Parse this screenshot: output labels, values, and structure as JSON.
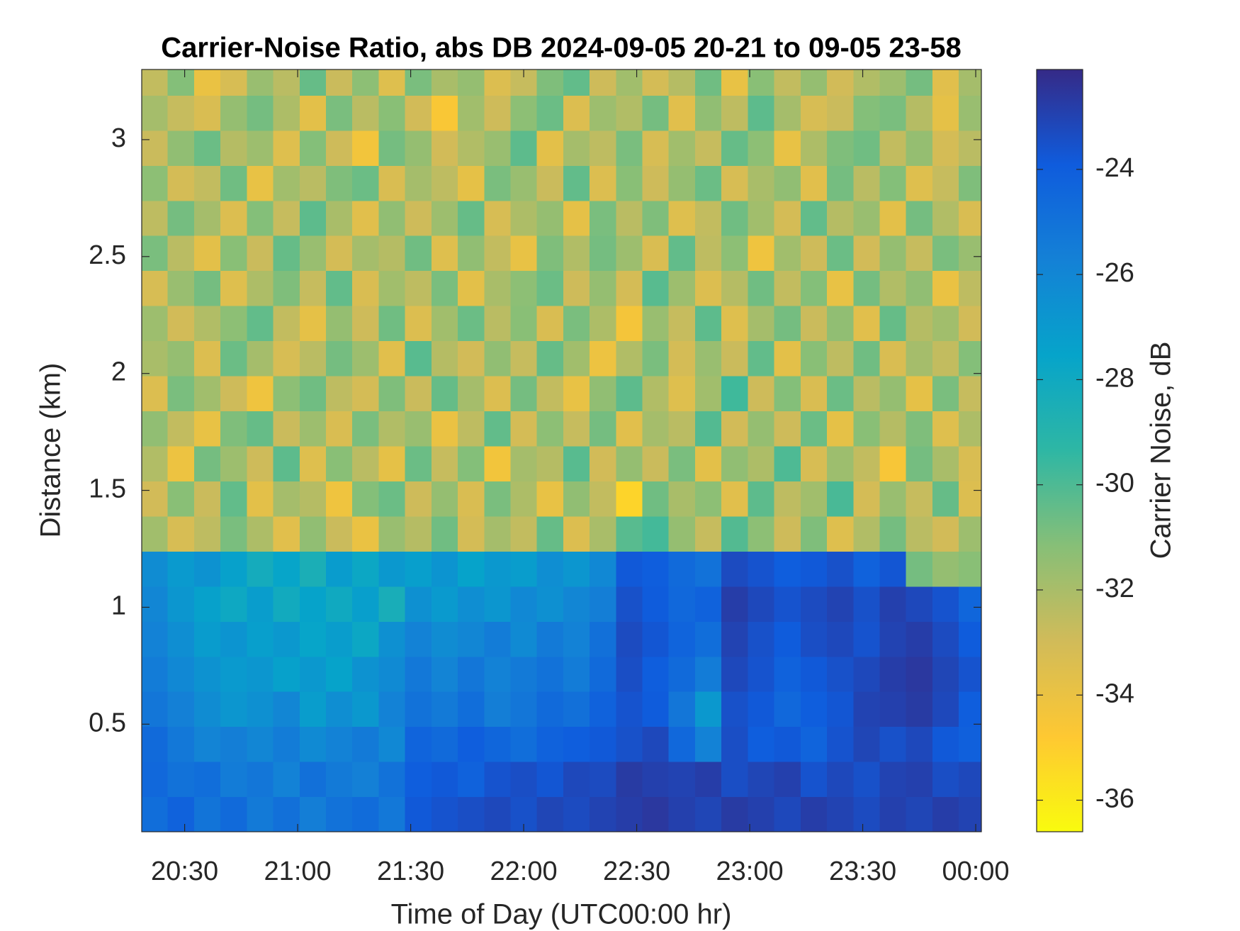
{
  "chart_data": {
    "type": "heatmap",
    "title": "Carrier-Noise Ratio, abs DB 2024-09-05 20-21 to 09-05 23-58",
    "x_label": "Time of Day (UTC00:00 hr)",
    "y_label": "Distance (km)",
    "colorbar_label": "Carrier Noise, dB",
    "colormap": "parula",
    "colormap_reversed": true,
    "xlim": [
      20.31,
      24.025
    ],
    "ylim": [
      0.04,
      3.3
    ],
    "clim": [
      -36.6,
      -22.1
    ],
    "xticks": [
      {
        "value": 20.5,
        "label": "20:30"
      },
      {
        "value": 21,
        "label": "21:00"
      },
      {
        "value": 21.5,
        "label": "21:30"
      },
      {
        "value": 22,
        "label": "22:00"
      },
      {
        "value": 22.5,
        "label": "22:30"
      },
      {
        "value": 23,
        "label": "23:00"
      },
      {
        "value": 23.5,
        "label": "23:30"
      },
      {
        "value": 24,
        "label": "00:00"
      }
    ],
    "yticks": [
      0.5,
      1,
      1.5,
      2,
      2.5,
      3
    ],
    "cticks": [
      -24,
      -26,
      -28,
      -30,
      -32,
      -34,
      -36
    ],
    "x": [
      20.367,
      20.483,
      20.6,
      20.717,
      20.833,
      20.95,
      21.067,
      21.183,
      21.3,
      21.417,
      21.533,
      21.65,
      21.767,
      21.883,
      22.0,
      22.117,
      22.233,
      22.35,
      22.467,
      22.583,
      22.7,
      22.817,
      22.933,
      23.05,
      23.167,
      23.283,
      23.4,
      23.517,
      23.633,
      23.75,
      23.867,
      23.983
    ],
    "y": [
      0.115,
      0.265,
      0.415,
      0.565,
      0.715,
      0.865,
      1.015,
      1.165,
      1.315,
      1.465,
      1.615,
      1.765,
      1.915,
      2.065,
      2.215,
      2.365,
      2.515,
      2.665,
      2.815,
      2.965,
      3.115,
      3.265
    ],
    "z": [
      [
        -24.8,
        -24.2,
        -25.1,
        -24.6,
        -25.4,
        -24.9,
        -25.6,
        -25.0,
        -24.7,
        -25.3,
        -23.8,
        -23.6,
        -23.4,
        -23.2,
        -23.5,
        -23.1,
        -23.3,
        -23.0,
        -22.8,
        -22.6,
        -22.9,
        -23.1,
        -22.7,
        -22.9,
        -23.2,
        -22.8,
        -23.0,
        -23.3,
        -22.9,
        -23.1,
        -22.8,
        -23.0
      ],
      [
        -24.5,
        -25.0,
        -24.8,
        -25.5,
        -25.2,
        -25.8,
        -24.9,
        -25.4,
        -25.7,
        -25.0,
        -24.0,
        -23.8,
        -24.2,
        -23.6,
        -23.4,
        -23.7,
        -23.2,
        -23.3,
        -22.7,
        -22.9,
        -23.0,
        -22.8,
        -23.4,
        -23.1,
        -22.9,
        -23.6,
        -23.2,
        -23.5,
        -23.0,
        -22.9,
        -23.4,
        -23.2
      ],
      [
        -24.6,
        -25.3,
        -25.9,
        -25.6,
        -26.0,
        -25.5,
        -26.2,
        -25.8,
        -25.4,
        -26.1,
        -24.3,
        -24.6,
        -24.0,
        -24.4,
        -24.8,
        -24.2,
        -24.0,
        -23.8,
        -23.5,
        -23.2,
        -24.5,
        -25.8,
        -23.4,
        -24.0,
        -23.8,
        -24.3,
        -23.6,
        -23.1,
        -23.5,
        -23.2,
        -23.8,
        -24.1
      ],
      [
        -25.2,
        -25.7,
        -26.3,
        -26.8,
        -26.5,
        -26.0,
        -27.2,
        -26.4,
        -26.9,
        -25.8,
        -25.0,
        -25.4,
        -24.8,
        -25.6,
        -25.2,
        -24.6,
        -24.9,
        -24.2,
        -23.6,
        -23.9,
        -25.2,
        -26.9,
        -23.5,
        -23.8,
        -24.5,
        -24.0,
        -23.7,
        -23.0,
        -22.9,
        -22.7,
        -23.2,
        -24.0
      ],
      [
        -25.5,
        -26.1,
        -26.6,
        -27.0,
        -26.8,
        -27.4,
        -26.9,
        -27.5,
        -26.6,
        -26.2,
        -25.3,
        -25.9,
        -25.2,
        -25.8,
        -25.4,
        -25.0,
        -25.5,
        -24.6,
        -23.4,
        -24.0,
        -24.6,
        -25.5,
        -23.2,
        -23.6,
        -24.2,
        -23.8,
        -23.5,
        -23.2,
        -22.8,
        -22.6,
        -23.1,
        -23.6
      ],
      [
        -25.8,
        -26.4,
        -27.1,
        -26.7,
        -27.3,
        -26.9,
        -27.6,
        -27.2,
        -27.8,
        -26.5,
        -25.8,
        -26.3,
        -26.0,
        -25.5,
        -26.2,
        -25.4,
        -25.8,
        -24.9,
        -23.3,
        -23.7,
        -24.3,
        -24.8,
        -23.0,
        -23.5,
        -23.9,
        -23.4,
        -23.2,
        -23.6,
        -23.0,
        -22.8,
        -23.3,
        -23.9
      ],
      [
        -26.0,
        -26.8,
        -27.4,
        -27.9,
        -27.2,
        -28.1,
        -27.5,
        -28.0,
        -27.3,
        -28.4,
        -26.5,
        -27.0,
        -26.4,
        -26.8,
        -26.1,
        -26.5,
        -26.0,
        -25.6,
        -23.5,
        -23.9,
        -24.5,
        -24.2,
        -22.8,
        -23.2,
        -23.6,
        -23.3,
        -23.0,
        -23.5,
        -22.9,
        -23.2,
        -23.6,
        -24.4
      ],
      [
        -26.3,
        -27.0,
        -26.6,
        -27.4,
        -28.2,
        -27.6,
        -28.5,
        -27.1,
        -27.8,
        -26.9,
        -27.3,
        -26.7,
        -27.5,
        -26.9,
        -27.2,
        -26.4,
        -26.8,
        -26.1,
        -23.8,
        -24.0,
        -24.6,
        -25.0,
        -23.3,
        -23.6,
        -24.0,
        -23.8,
        -23.5,
        -24.2,
        -23.7,
        -30.8,
        -31.5,
        -31.2
      ],
      [
        -31.8,
        -33.2,
        -32.5,
        -30.9,
        -32.1,
        -33.6,
        -31.4,
        -32.8,
        -34.0,
        -31.6,
        -32.3,
        -30.7,
        -33.1,
        -31.9,
        -32.6,
        -30.5,
        -33.4,
        -32.0,
        -30.2,
        -29.8,
        -31.5,
        -32.7,
        -30.1,
        -31.3,
        -32.9,
        -31.0,
        -33.5,
        -32.2,
        -30.8,
        -32.4,
        -33.0,
        -31.7
      ],
      [
        -33.0,
        -31.2,
        -32.8,
        -30.4,
        -33.7,
        -31.9,
        -32.3,
        -34.2,
        -31.1,
        -30.6,
        -32.9,
        -31.5,
        -33.3,
        -30.9,
        -32.1,
        -33.9,
        -31.4,
        -32.6,
        -35.2,
        -30.7,
        -32.0,
        -31.3,
        -33.6,
        -30.3,
        -32.5,
        -31.8,
        -29.9,
        -33.1,
        -31.6,
        -32.7,
        -30.5,
        -33.4
      ],
      [
        -32.2,
        -34.1,
        -30.8,
        -31.7,
        -32.9,
        -30.3,
        -33.5,
        -31.2,
        -32.4,
        -33.8,
        -30.6,
        -32.7,
        -31.1,
        -34.3,
        -31.9,
        -32.3,
        -30.2,
        -33.0,
        -31.5,
        -32.8,
        -30.9,
        -33.7,
        -31.4,
        -32.1,
        -30.0,
        -33.2,
        -31.7,
        -32.6,
        -34.5,
        -30.8,
        -32.0,
        -33.3
      ],
      [
        -31.4,
        -32.6,
        -33.9,
        -31.0,
        -30.5,
        -32.8,
        -31.7,
        -33.3,
        -30.9,
        -32.2,
        -31.6,
        -34.0,
        -32.5,
        -30.4,
        -33.1,
        -31.3,
        -32.7,
        -30.8,
        -33.6,
        -31.9,
        -32.4,
        -30.1,
        -33.0,
        -31.5,
        -32.9,
        -30.6,
        -33.8,
        -31.2,
        -32.3,
        -31.0,
        -33.5,
        -32.1
      ],
      [
        -33.4,
        -30.9,
        -31.8,
        -32.9,
        -34.2,
        -31.3,
        -30.7,
        -32.5,
        -33.1,
        -31.0,
        -32.8,
        -30.5,
        -31.9,
        -33.4,
        -30.8,
        -32.6,
        -33.9,
        -31.4,
        -30.3,
        -32.2,
        -33.5,
        -31.8,
        -29.7,
        -32.9,
        -31.1,
        -33.3,
        -30.6,
        -32.4,
        -31.5,
        -33.8,
        -30.9,
        -32.7
      ],
      [
        -32.0,
        -31.5,
        -33.4,
        -30.6,
        -31.9,
        -33.2,
        -32.4,
        -30.8,
        -31.7,
        -33.6,
        -30.2,
        -32.3,
        -33.0,
        -31.4,
        -32.7,
        -30.5,
        -31.8,
        -34.1,
        -32.2,
        -30.9,
        -33.1,
        -31.6,
        -32.8,
        -30.4,
        -33.7,
        -31.2,
        -32.5,
        -30.7,
        -33.3,
        -31.9,
        -32.6,
        -31.1
      ],
      [
        -31.7,
        -33.0,
        -32.2,
        -31.3,
        -30.4,
        -32.6,
        -33.8,
        -31.5,
        -32.9,
        -30.7,
        -33.4,
        -31.8,
        -30.6,
        -32.4,
        -31.2,
        -33.3,
        -30.9,
        -32.1,
        -34.4,
        -31.6,
        -32.7,
        -30.3,
        -33.5,
        -31.9,
        -30.8,
        -32.8,
        -31.4,
        -33.6,
        -30.5,
        -32.3,
        -31.8,
        -33.0
      ],
      [
        -33.2,
        -31.6,
        -30.8,
        -33.5,
        -32.1,
        -31.0,
        -32.7,
        -30.4,
        -33.3,
        -31.8,
        -32.5,
        -30.9,
        -33.7,
        -32.0,
        -31.3,
        -30.6,
        -32.9,
        -31.5,
        -33.1,
        -30.2,
        -31.7,
        -33.4,
        -32.3,
        -30.7,
        -32.6,
        -31.1,
        -33.9,
        -30.8,
        -32.2,
        -31.4,
        -34.0,
        -32.5
      ],
      [
        -30.9,
        -32.4,
        -33.7,
        -31.2,
        -32.8,
        -30.5,
        -31.6,
        -33.1,
        -31.9,
        -32.3,
        -30.7,
        -33.5,
        -31.4,
        -32.6,
        -33.9,
        -31.0,
        -32.2,
        -30.8,
        -31.7,
        -33.3,
        -30.4,
        -32.5,
        -31.3,
        -34.2,
        -31.8,
        -32.9,
        -30.6,
        -33.0,
        -31.5,
        -32.7,
        -30.9,
        -31.6
      ],
      [
        -32.5,
        -30.8,
        -31.9,
        -33.4,
        -31.1,
        -32.7,
        -30.3,
        -32.0,
        -33.6,
        -31.4,
        -32.9,
        -31.7,
        -30.5,
        -33.2,
        -32.1,
        -31.5,
        -33.8,
        -30.9,
        -32.4,
        -31.0,
        -33.5,
        -32.6,
        -30.7,
        -31.8,
        -33.1,
        -30.4,
        -32.3,
        -31.6,
        -33.7,
        -30.8,
        -32.2,
        -33.3
      ],
      [
        -31.3,
        -33.1,
        -32.6,
        -30.7,
        -33.9,
        -31.8,
        -32.4,
        -31.0,
        -30.6,
        -33.3,
        -31.9,
        -32.5,
        -33.8,
        -30.9,
        -31.6,
        -32.8,
        -30.4,
        -33.4,
        -31.2,
        -32.9,
        -31.5,
        -30.6,
        -33.2,
        -32.0,
        -31.4,
        -33.6,
        -30.8,
        -32.4,
        -31.1,
        -33.5,
        -32.7,
        -31.0
      ],
      [
        -32.8,
        -31.4,
        -30.6,
        -32.3,
        -31.7,
        -33.5,
        -31.1,
        -32.9,
        -34.3,
        -30.8,
        -31.5,
        -33.0,
        -32.2,
        -31.6,
        -30.3,
        -33.7,
        -31.9,
        -32.5,
        -30.9,
        -33.2,
        -31.8,
        -32.7,
        -30.5,
        -31.3,
        -33.9,
        -32.1,
        -31.0,
        -30.7,
        -32.6,
        -31.5,
        -33.1,
        -32.4
      ],
      [
        -31.9,
        -32.7,
        -33.3,
        -31.5,
        -30.8,
        -32.1,
        -33.7,
        -30.9,
        -32.4,
        -31.2,
        -33.0,
        -34.6,
        -31.8,
        -32.9,
        -31.3,
        -30.6,
        -33.4,
        -31.7,
        -32.2,
        -30.8,
        -33.6,
        -31.4,
        -32.5,
        -30.3,
        -31.9,
        -33.2,
        -32.8,
        -31.1,
        -30.9,
        -32.3,
        -33.8,
        -31.6
      ],
      [
        -32.6,
        -31.1,
        -34.0,
        -33.2,
        -31.6,
        -32.4,
        -30.5,
        -32.8,
        -31.3,
        -33.5,
        -30.9,
        -32.0,
        -31.5,
        -33.4,
        -32.7,
        -31.0,
        -30.4,
        -32.9,
        -31.8,
        -33.1,
        -32.3,
        -30.7,
        -33.9,
        -31.2,
        -32.6,
        -31.5,
        -33.0,
        -32.2,
        -31.7,
        -30.8,
        -33.6,
        -31.9
      ]
    ]
  }
}
